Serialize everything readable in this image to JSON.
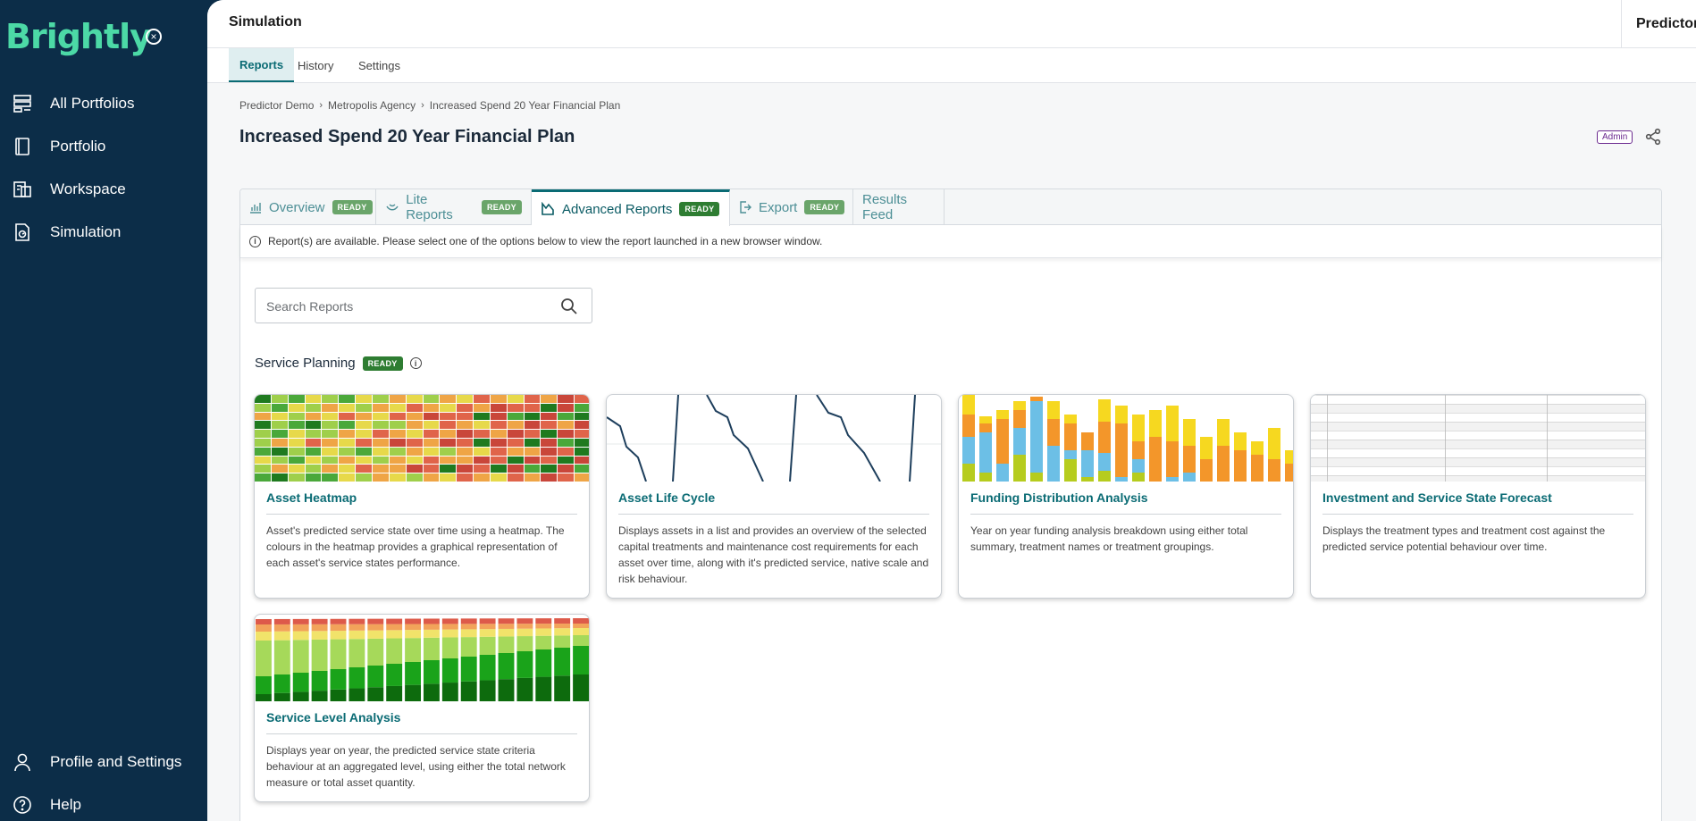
{
  "sidebar": {
    "logo_text": "Brightly",
    "items": [
      {
        "label": "All Portfolios",
        "icon": "portfolios-icon"
      },
      {
        "label": "Portfolio",
        "icon": "book-icon"
      },
      {
        "label": "Workspace",
        "icon": "workspace-icon"
      },
      {
        "label": "Simulation",
        "icon": "simulation-icon"
      }
    ],
    "bottom_items": [
      {
        "label": "Profile and Settings",
        "icon": "user-icon"
      },
      {
        "label": "Help",
        "icon": "help-icon"
      }
    ]
  },
  "topbar": {
    "title": "Simulation",
    "right_label": "Predictor"
  },
  "subtabs": [
    {
      "label": "Reports",
      "active": true
    },
    {
      "label": "History",
      "active": false
    },
    {
      "label": "Settings",
      "active": false
    }
  ],
  "breadcrumb": [
    "Predictor Demo",
    "Metropolis Agency",
    "Increased Spend 20 Year Financial Plan"
  ],
  "page_title": "Increased Spend 20 Year Financial Plan",
  "admin_badge": "Admin",
  "tabs": [
    {
      "label": "Overview",
      "badge": "READY",
      "icon": "overview-icon"
    },
    {
      "label": "Lite Reports",
      "badge": "READY",
      "icon": "lite-reports-icon"
    },
    {
      "label": "Advanced Reports",
      "badge": "READY",
      "icon": "advanced-reports-icon",
      "active": true
    },
    {
      "label": "Export",
      "badge": "READY",
      "icon": "export-icon"
    },
    {
      "label": "Results Feed",
      "badge": null,
      "icon": null
    }
  ],
  "info_message": "Report(s) are available. Please select one of the options below to view the report launched in a new browser window.",
  "search": {
    "placeholder": "Search Reports"
  },
  "section": {
    "title": "Service Planning",
    "badge": "READY"
  },
  "cards": [
    {
      "title": "Asset Heatmap",
      "description": "Asset's predicted service state over time using a heatmap. The colours in the heatmap provides a graphical representation of each asset's service states performance."
    },
    {
      "title": "Asset Life Cycle",
      "description": "Displays assets in a list and provides an overview of the selected capital treatments and maintenance cost requirements for each asset over time, along with it's predicted service, native scale and risk behaviour."
    },
    {
      "title": "Funding Distribution Analysis",
      "description": "Year on year funding analysis breakdown using either total summary, treatment names or treatment groupings."
    },
    {
      "title": "Investment and Service State Forecast",
      "description": "Displays the treatment types and treatment cost against the predicted service potential behaviour over time."
    },
    {
      "title": "Service Level Analysis",
      "description": "Displays year on year, the predicted service state criteria behaviour at an aggregated level, using either the total network measure or total asset quantity."
    }
  ],
  "colors": {
    "sidebar_bg": "#0c2d48",
    "accent": "#0a6b74",
    "logo": "#4cd9a6",
    "ready_badge": "#2e7d32"
  }
}
